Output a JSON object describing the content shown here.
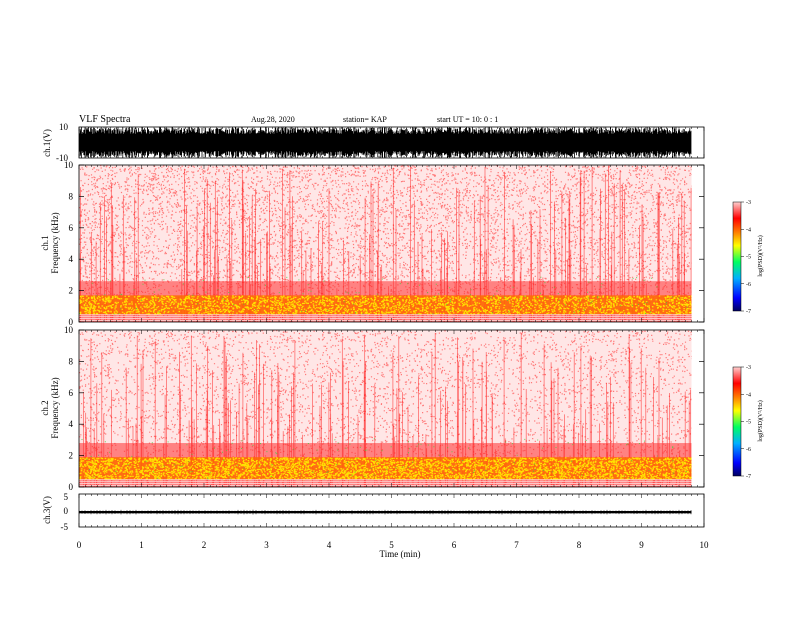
{
  "header": {
    "title": "VLF Spectra",
    "date": "Aug.28, 2020",
    "station": "station= KAP",
    "start_ut": "start  UT =   10: 0  : 1"
  },
  "colors": {
    "background": "#ffffff",
    "waveform": "#000000",
    "colormap": [
      "#000080",
      "#0000ff",
      "#00c0ff",
      "#00ff60",
      "#ffff00",
      "#ff8000",
      "#ff0000",
      "#ffc0c0"
    ]
  },
  "chart_data": [
    {
      "id": "ch1-waveform",
      "type": "line",
      "ylabel": "ch.1(V)",
      "ylim": [
        -10,
        10
      ],
      "yticks": [
        "10",
        "-10"
      ],
      "xlim": [
        0,
        10
      ],
      "description_values": "dense black waveform saturating most of the ±10 V range"
    },
    {
      "id": "ch1-spectrogram",
      "type": "heatmap",
      "ylabel": "ch.1\nFrequency (kHz)",
      "ylabel_lines": [
        "ch.1",
        "Frequency  (kHz)"
      ],
      "ylim": [
        0,
        10
      ],
      "yticks": [
        "0",
        "2",
        "4",
        "6",
        "8",
        "10"
      ],
      "xlim": [
        0,
        9.8
      ],
      "intense_band_khz": [
        0.5,
        1.7
      ],
      "colorbar": {
        "label": "log(PSD)(V²/Hz)",
        "ticks": [
          "-3",
          "-4",
          "-5",
          "-6",
          "-7"
        ],
        "range": [
          -7,
          -3
        ]
      }
    },
    {
      "id": "ch2-spectrogram",
      "type": "heatmap",
      "ylabel": "ch.2\nFrequency (kHz)",
      "ylabel_lines": [
        "ch.2",
        "Frequency  (kHz)"
      ],
      "ylim": [
        0,
        10
      ],
      "yticks": [
        "0",
        "2",
        "4",
        "6",
        "8",
        "10"
      ],
      "xlim": [
        0,
        9.8
      ],
      "intense_band_khz": [
        0.5,
        1.9
      ],
      "colorbar": {
        "label": "log(PSD)(V²/Hz)",
        "ticks": [
          "-3",
          "-4",
          "-5",
          "-6",
          "-7"
        ],
        "range": [
          -7,
          -3
        ]
      }
    },
    {
      "id": "ch3-waveform",
      "type": "line",
      "ylabel": "ch.3(V)",
      "ylim": [
        -5,
        5
      ],
      "yticks": [
        "5",
        "0",
        "-5"
      ],
      "xlim": [
        0,
        9.8
      ],
      "level_v": -0.5
    }
  ],
  "xaxis": {
    "label": "Time  (min)",
    "ticks": [
      "0",
      "1",
      "2",
      "3",
      "4",
      "5",
      "6",
      "7",
      "8",
      "9",
      "10"
    ],
    "range": [
      0,
      10
    ]
  }
}
